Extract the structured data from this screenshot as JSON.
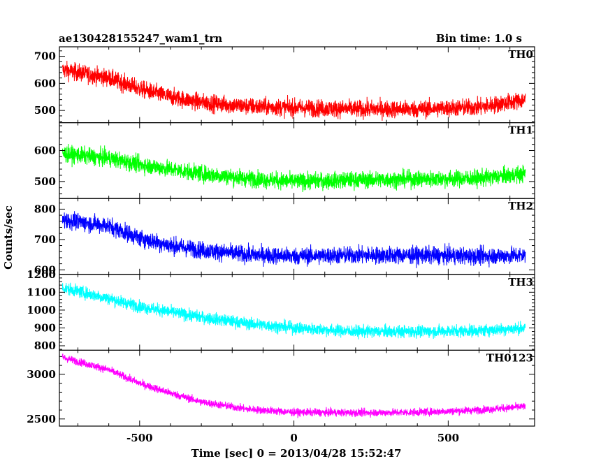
{
  "header": {
    "title": "ae130428155247_wam1_trn",
    "bin_time": "Bin time: 1.0 s"
  },
  "axes": {
    "xlabel": "Time [sec] 0 = 2013/04/28 15:52:47",
    "ylabel": "Counts/sec",
    "xlim": [
      -760,
      780
    ],
    "xticks": [
      -500,
      0,
      500
    ]
  },
  "chart_data": {
    "type": "line",
    "xlabel": "Time [sec] 0 = 2013/04/28 15:52:47",
    "ylabel": "Counts/sec",
    "x_range": [
      -750,
      750
    ],
    "bin_time_s": 1.0,
    "panels": [
      {
        "name": "TH0",
        "color": "#ff0000",
        "ylim": [
          455,
          735
        ],
        "yticks": [
          500,
          600,
          700
        ],
        "trend": {
          "x": [
            -750,
            -600,
            -500,
            -400,
            -300,
            -150,
            0,
            200,
            400,
            600,
            750
          ],
          "y": [
            650,
            620,
            580,
            550,
            530,
            515,
            510,
            505,
            505,
            512,
            540
          ]
        },
        "noise_amplitude": 45
      },
      {
        "name": "TH1",
        "color": "#00ff00",
        "ylim": [
          445,
          690
        ],
        "yticks": [
          500,
          600
        ],
        "trend": {
          "x": [
            -750,
            -600,
            -500,
            -400,
            -300,
            -150,
            0,
            200,
            400,
            600,
            750
          ],
          "y": [
            590,
            575,
            555,
            540,
            525,
            510,
            500,
            505,
            508,
            510,
            525
          ]
        },
        "noise_amplitude": 38
      },
      {
        "name": "TH2",
        "color": "#0000ff",
        "ylim": [
          585,
          835
        ],
        "yticks": [
          600,
          700,
          800
        ],
        "trend": {
          "x": [
            -750,
            -600,
            -500,
            -400,
            -300,
            -150,
            0,
            200,
            400,
            600,
            750
          ],
          "y": [
            765,
            745,
            705,
            680,
            665,
            650,
            645,
            648,
            648,
            645,
            648
          ]
        },
        "noise_amplitude": 40
      },
      {
        "name": "TH3",
        "color": "#00ffff",
        "ylim": [
          775,
          1200
        ],
        "yticks": [
          800,
          900,
          1000,
          1100,
          1200
        ],
        "trend": {
          "x": [
            -750,
            -600,
            -500,
            -400,
            -300,
            -150,
            0,
            200,
            400,
            600,
            750
          ],
          "y": [
            1125,
            1065,
            1020,
            990,
            960,
            925,
            900,
            880,
            880,
            885,
            900
          ]
        },
        "noise_amplitude": 48
      },
      {
        "name": "TH0123",
        "color": "#ff00ff",
        "ylim": [
          2420,
          3270
        ],
        "yticks": [
          2500,
          3000
        ],
        "trend": {
          "x": [
            -750,
            -600,
            -500,
            -400,
            -300,
            -150,
            0,
            200,
            400,
            600,
            750
          ],
          "y": [
            3190,
            3050,
            2900,
            2790,
            2690,
            2610,
            2575,
            2570,
            2575,
            2600,
            2640
          ]
        },
        "noise_amplitude": 60
      }
    ]
  }
}
